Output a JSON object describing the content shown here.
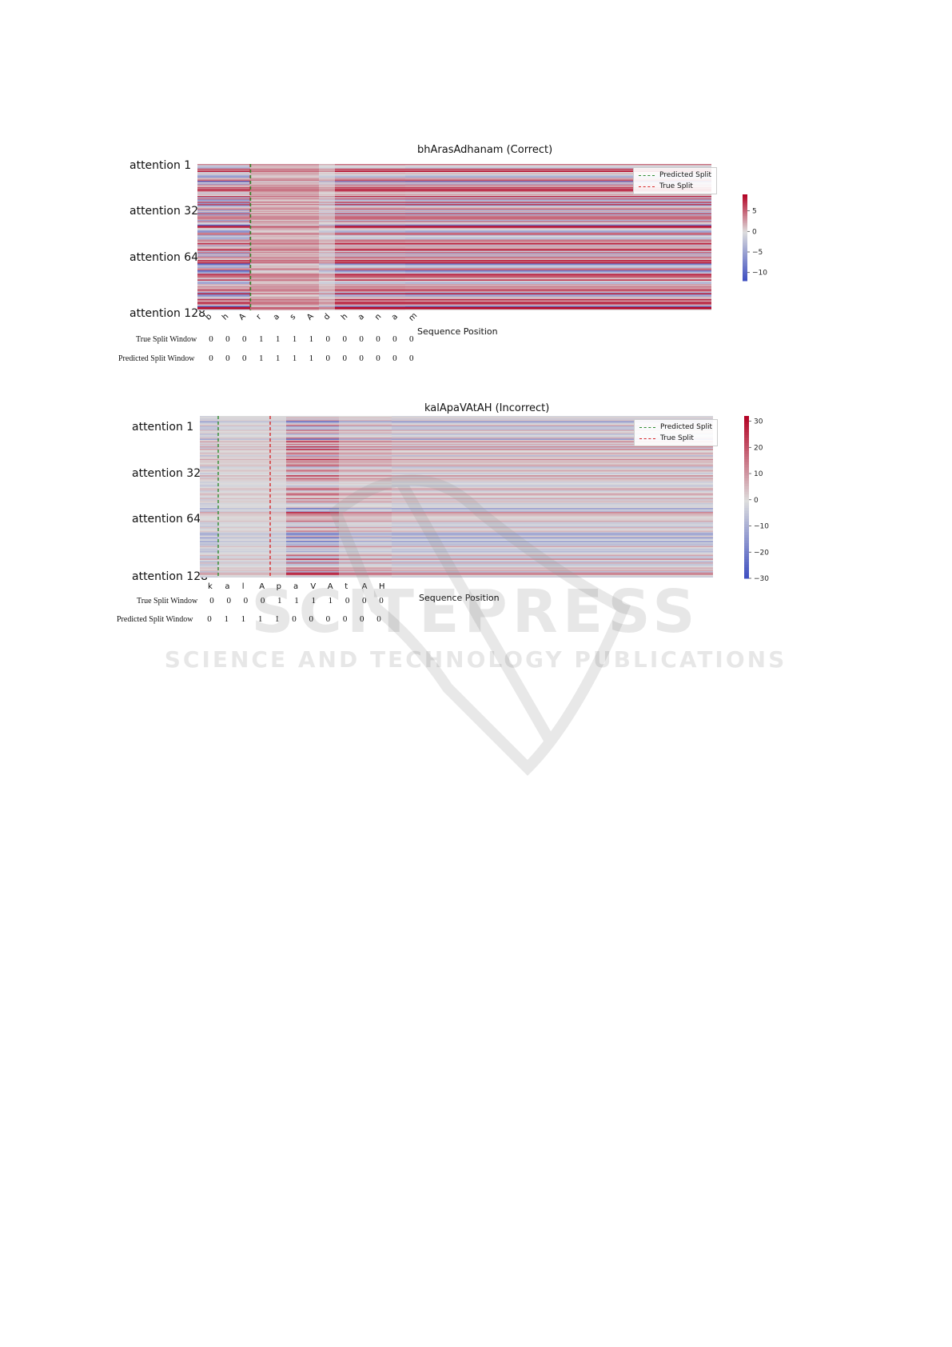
{
  "chart_data": [
    {
      "type": "heatmap",
      "title": "bhArasAdhanam (Correct)",
      "xlabel": "Sequence Position",
      "row_labels": [
        "attention 1",
        "attention 32",
        "attention 64",
        "attention 128"
      ],
      "x_tokens": [
        "b",
        "h",
        "A",
        "r",
        "a",
        "s",
        "A",
        "d",
        "h",
        "a",
        "n",
        "a",
        "m"
      ],
      "true_split_label": "True Split Window",
      "predicted_split_label": "Predicted Split Window",
      "true_split_window": [
        0,
        0,
        0,
        1,
        1,
        1,
        1,
        0,
        0,
        0,
        0,
        0,
        0
      ],
      "predicted_split_window": [
        0,
        0,
        0,
        1,
        1,
        1,
        1,
        0,
        0,
        0,
        0,
        0,
        0
      ],
      "legend": [
        "Predicted Split",
        "True Split"
      ],
      "colorbar_ticks": [
        "5",
        "0",
        "−5",
        "−10"
      ],
      "colorbar_range": [
        -12,
        9
      ]
    },
    {
      "type": "heatmap",
      "title": "kalApaVAtAH (Incorrect)",
      "xlabel": "Sequence Position",
      "row_labels": [
        "attention 1",
        "attention 32",
        "attention 64",
        "attention 128"
      ],
      "x_tokens": [
        "k",
        "a",
        "l",
        "A",
        "p",
        "a",
        "V",
        "A",
        "t",
        "A",
        "H"
      ],
      "true_split_label": "True Split Window",
      "predicted_split_label": "Predicted Split Window",
      "true_split_window": [
        0,
        0,
        0,
        0,
        1,
        1,
        1,
        1,
        0,
        0,
        0
      ],
      "predicted_split_window": [
        0,
        1,
        1,
        1,
        1,
        0,
        0,
        0,
        0,
        0,
        0
      ],
      "legend": [
        "Predicted Split",
        "True Split"
      ],
      "colorbar_ticks": [
        "30",
        "20",
        "10",
        "0",
        "−10",
        "−20",
        "−30"
      ],
      "colorbar_range": [
        -30,
        32
      ]
    }
  ],
  "watermark": {
    "line1": "SCITEPRESS",
    "line2": "SCIENCE AND TECHNOLOGY PUBLICATIONS"
  },
  "colors": {
    "pred_split": "#2e8b2e",
    "true_split": "#d62728",
    "cold": "#3b4cc0",
    "neutral": "#dddddd",
    "hot": "#b40426"
  }
}
